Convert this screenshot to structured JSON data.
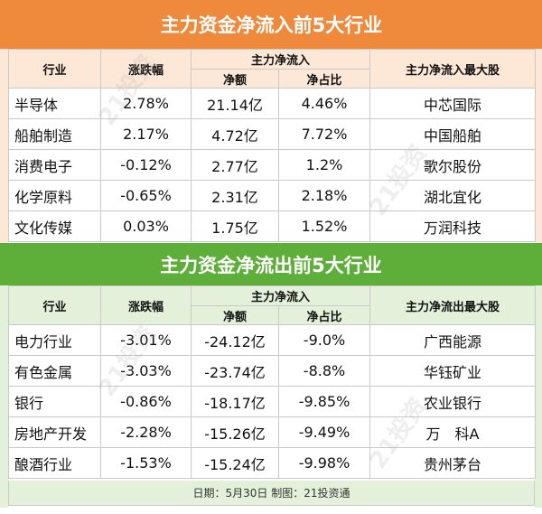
{
  "inflow": {
    "title": "主力资金净流入前5大行业",
    "headers": {
      "industry": "行业",
      "change": "涨跌幅",
      "flow_group": "主力净流入",
      "amount": "净额",
      "ratio": "净占比",
      "top_stock": "主力净流入最大股"
    },
    "rows": [
      {
        "industry": "半导体",
        "change": "2.78%",
        "amount": "21.14亿",
        "ratio": "4.46%",
        "top_stock": "中芯国际"
      },
      {
        "industry": "船舶制造",
        "change": "2.17%",
        "amount": "4.72亿",
        "ratio": "7.72%",
        "top_stock": "中国船舶"
      },
      {
        "industry": "消费电子",
        "change": "-0.12%",
        "amount": "2.77亿",
        "ratio": "1.2%",
        "top_stock": "歌尔股份"
      },
      {
        "industry": "化学原料",
        "change": "-0.65%",
        "amount": "2.31亿",
        "ratio": "2.18%",
        "top_stock": "湖北宜化"
      },
      {
        "industry": "文化传媒",
        "change": "0.03%",
        "amount": "1.75亿",
        "ratio": "1.52%",
        "top_stock": "万润科技"
      }
    ]
  },
  "outflow": {
    "title": "主力资金净流出前5大行业",
    "headers": {
      "industry": "行业",
      "change": "涨跌幅",
      "flow_group": "主力净流入",
      "amount": "净额",
      "ratio": "净占比",
      "top_stock": "主力净流出最大股"
    },
    "rows": [
      {
        "industry": "电力行业",
        "change": "-3.01%",
        "amount": "-24.12亿",
        "ratio": "-9.0%",
        "top_stock": "广西能源"
      },
      {
        "industry": "有色金属",
        "change": "-3.03%",
        "amount": "-23.74亿",
        "ratio": "-8.8%",
        "top_stock": "华钰矿业"
      },
      {
        "industry": "银行",
        "change": "-0.86%",
        "amount": "-18.17亿",
        "ratio": "-9.85%",
        "top_stock": "农业银行"
      },
      {
        "industry": "房地产开发",
        "change": "-2.28%",
        "amount": "-15.26亿",
        "ratio": "-9.49%",
        "top_stock": "万　科A"
      },
      {
        "industry": "酿酒行业",
        "change": "-1.53%",
        "amount": "-15.24亿",
        "ratio": "-9.98%",
        "top_stock": "贵州茅台"
      }
    ]
  },
  "footer": "日期：5月30日  制图：21投资通",
  "watermark": "21投资",
  "colors": {
    "inflow_banner": "#ef8a3c",
    "inflow_header_bg": "#fde8d8",
    "outflow_banner": "#5eae3a",
    "outflow_header_bg": "#e4f1da"
  }
}
